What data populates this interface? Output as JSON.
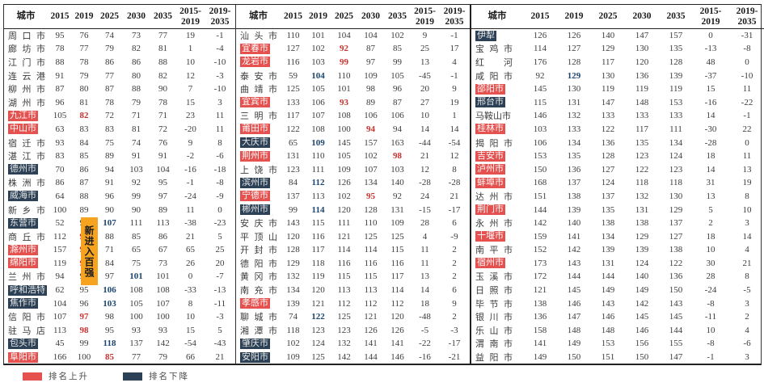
{
  "colors": {
    "rank_up_bg": "#e4514e",
    "rank_down_bg": "#2c4156",
    "first_in_top100_text": "#cb322e",
    "first_out_top100_text": "#1c4670",
    "annotation_bg": "#f6a41f"
  },
  "annotation": {
    "text": "新进入百强"
  },
  "legend": {
    "items": [
      {
        "type": "up",
        "label": "排名上升"
      },
      {
        "type": "down",
        "label": "排名下降"
      }
    ]
  },
  "table": {
    "columns": [
      "城市",
      "2015",
      "2019",
      "2025",
      "2030",
      "2035",
      "2015-\n2019",
      "2019-\n2035"
    ],
    "panels": [
      {
        "rows": [
          [
            "周口市",
            "none",
            [
              95,
              76,
              74,
              73,
              77,
              19,
              -1
            ],
            null
          ],
          [
            "廊坊市",
            "none",
            [
              78,
              77,
              79,
              82,
              81,
              1,
              -4
            ],
            null
          ],
          [
            "江门市",
            "none",
            [
              88,
              78,
              86,
              86,
              88,
              10,
              -10
            ],
            null
          ],
          [
            "连云港",
            "none",
            [
              91,
              79,
              77,
              80,
              82,
              12,
              -3
            ],
            null
          ],
          [
            "柳州市",
            "none",
            [
              87,
              80,
              87,
              88,
              90,
              7,
              -10
            ],
            null
          ],
          [
            "湖州市",
            "none",
            [
              96,
              81,
              78,
              79,
              78,
              15,
              3
            ],
            null
          ],
          [
            "九江市",
            "up",
            [
              105,
              82,
              72,
              71,
              71,
              23,
              11
            ],
            {
              "1": "red"
            }
          ],
          [
            "中山市",
            "up",
            [
              63,
              83,
              83,
              81,
              72,
              -20,
              11
            ],
            null
          ],
          [
            "宿迁市",
            "none",
            [
              93,
              84,
              75,
              74,
              76,
              9,
              8
            ],
            null
          ],
          [
            "湛江市",
            "none",
            [
              83,
              85,
              89,
              91,
              91,
              -2,
              -6
            ],
            null
          ],
          [
            "德州市",
            "down",
            [
              70,
              86,
              94,
              103,
              104,
              -16,
              -18
            ],
            null
          ],
          [
            "株洲市",
            "none",
            [
              86,
              87,
              91,
              92,
              95,
              -1,
              -8
            ],
            null
          ],
          [
            "威海市",
            "down",
            [
              64,
              88,
              96,
              99,
              97,
              -24,
              -9
            ],
            null
          ],
          [
            "新乡市",
            "none",
            [
              100,
              89,
              90,
              90,
              89,
              11,
              0
            ],
            null
          ],
          [
            "东营市",
            "down",
            [
              52,
              90,
              107,
              111,
              113,
              -38,
              -23
            ],
            {
              "2": "blue"
            }
          ],
          [
            "商丘市",
            "none",
            [
              112,
              91,
              88,
              85,
              86,
              21,
              5
            ],
            {
              "1": "red"
            }
          ],
          [
            "滁州市",
            "up",
            [
              157,
              92,
              71,
              65,
              67,
              65,
              25
            ],
            {
              "1": "red"
            }
          ],
          [
            "绵阳市",
            "up",
            [
              119,
              93,
              84,
              75,
              73,
              26,
              20
            ],
            {
              "1": "red"
            }
          ],
          [
            "兰州市",
            "none",
            [
              94,
              94,
              97,
              101,
              101,
              0,
              -7
            ],
            {
              "3": "blue"
            }
          ],
          [
            "呼和浩特",
            "down",
            [
              62,
              95,
              106,
              108,
              108,
              -33,
              -13
            ],
            {
              "2": "blue"
            }
          ],
          [
            "焦作市",
            "down",
            [
              104,
              96,
              103,
              105,
              107,
              8,
              -11
            ],
            {
              "2": "blue"
            }
          ],
          [
            "信阳市",
            "none",
            [
              107,
              97,
              98,
              100,
              100,
              10,
              -3
            ],
            {
              "1": "red"
            }
          ],
          [
            "驻马店",
            "none",
            [
              113,
              98,
              95,
              93,
              93,
              15,
              5
            ],
            {
              "1": "red"
            }
          ],
          [
            "包头市",
            "down",
            [
              45,
              99,
              118,
              137,
              142,
              -54,
              -43
            ],
            {
              "2": "blue"
            }
          ],
          [
            "阜阳市",
            "up",
            [
              166,
              100,
              85,
              77,
              79,
              66,
              21
            ],
            {
              "2": "red"
            }
          ]
        ]
      },
      {
        "rows": [
          [
            "汕头市",
            "none",
            [
              110,
              101,
              104,
              104,
              102,
              9,
              -1
            ],
            null
          ],
          [
            "宜春市",
            "up",
            [
              127,
              102,
              92,
              87,
              85,
              25,
              17
            ],
            {
              "2": "red"
            }
          ],
          [
            "龙岩市",
            "up",
            [
              116,
              103,
              99,
              97,
              99,
              13,
              4
            ],
            {
              "2": "red"
            }
          ],
          [
            "泰安市",
            "none",
            [
              59,
              104,
              110,
              109,
              105,
              -45,
              -1
            ],
            {
              "1": "blue"
            }
          ],
          [
            "曲靖市",
            "none",
            [
              125,
              105,
              101,
              98,
              96,
              20,
              9
            ],
            null
          ],
          [
            "宜宾市",
            "up",
            [
              133,
              106,
              93,
              89,
              87,
              27,
              19
            ],
            {
              "2": "red"
            }
          ],
          [
            "三明市",
            "none",
            [
              117,
              107,
              108,
              106,
              106,
              10,
              1
            ],
            null
          ],
          [
            "莆田市",
            "up",
            [
              122,
              108,
              100,
              94,
              94,
              14,
              14
            ],
            {
              "3": "red"
            }
          ],
          [
            "大庆市",
            "down",
            [
              65,
              109,
              145,
              157,
              163,
              -44,
              -54
            ],
            {
              "1": "blue"
            }
          ],
          [
            "荆州市",
            "up",
            [
              131,
              110,
              105,
              102,
              98,
              21,
              12
            ],
            {
              "4": "red"
            }
          ],
          [
            "上饶市",
            "none",
            [
              123,
              111,
              109,
              107,
              103,
              12,
              8
            ],
            null
          ],
          [
            "滨州市",
            "down",
            [
              84,
              112,
              126,
              134,
              140,
              -28,
              -28
            ],
            {
              "1": "blue"
            }
          ],
          [
            "宁德市",
            "up",
            [
              137,
              113,
              102,
              95,
              92,
              24,
              21
            ],
            {
              "3": "red"
            }
          ],
          [
            "郴州市",
            "down",
            [
              99,
              114,
              120,
              128,
              131,
              -15,
              -17
            ],
            {
              "1": "blue"
            }
          ],
          [
            "安庆市",
            "none",
            [
              143,
              115,
              111,
              110,
              109,
              28,
              6
            ],
            null
          ],
          [
            "平顶山",
            "none",
            [
              120,
              116,
              121,
              125,
              125,
              4,
              -9
            ],
            null
          ],
          [
            "开封市",
            "none",
            [
              128,
              117,
              114,
              114,
              115,
              11,
              2
            ],
            null
          ],
          [
            "德阳市",
            "none",
            [
              129,
              118,
              116,
              116,
              116,
              11,
              2
            ],
            null
          ],
          [
            "黄冈市",
            "none",
            [
              132,
              119,
              115,
              115,
              117,
              13,
              2
            ],
            null
          ],
          [
            "南充市",
            "none",
            [
              134,
              120,
              113,
              113,
              114,
              14,
              6
            ],
            null
          ],
          [
            "孝感市",
            "up",
            [
              139,
              121,
              112,
              112,
              112,
              18,
              9
            ],
            null
          ],
          [
            "聊城市",
            "none",
            [
              74,
              122,
              125,
              121,
              120,
              -48,
              2
            ],
            {
              "1": "blue"
            }
          ],
          [
            "湘潭市",
            "none",
            [
              118,
              123,
              123,
              126,
              126,
              -5,
              -3
            ],
            null
          ],
          [
            "肇庆市",
            "down",
            [
              102,
              124,
              132,
              141,
              141,
              -22,
              -17
            ],
            null
          ],
          [
            "安阳市",
            "down",
            [
              109,
              125,
              142,
              144,
              146,
              -16,
              -21
            ],
            null
          ]
        ]
      },
      {
        "rows": [
          [
            "伊犁",
            "down",
            [
              126,
              126,
              140,
              147,
              157,
              0,
              -31
            ],
            null
          ],
          [
            "宝鸡市",
            "none",
            [
              114,
              127,
              129,
              130,
              135,
              -13,
              -8
            ],
            null
          ],
          [
            "红河",
            "none",
            [
              176,
              128,
              117,
              120,
              128,
              48,
              0
            ],
            null
          ],
          [
            "咸阳市",
            "none",
            [
              92,
              129,
              130,
              136,
              139,
              -37,
              -10
            ],
            {
              "1": "blue"
            }
          ],
          [
            "邵阳市",
            "up",
            [
              145,
              130,
              119,
              119,
              119,
              15,
              11
            ],
            null
          ],
          [
            "邢台市",
            "down",
            [
              115,
              131,
              147,
              148,
              153,
              -16,
              -22
            ],
            null
          ],
          [
            "马鞍山市",
            "none",
            [
              146,
              132,
              133,
              133,
              133,
              14,
              -1
            ],
            null
          ],
          [
            "桂林市",
            "up",
            [
              103,
              133,
              122,
              117,
              111,
              -30,
              22
            ],
            null
          ],
          [
            "揭阳市",
            "none",
            [
              106,
              134,
              136,
              135,
              134,
              -28,
              0
            ],
            null
          ],
          [
            "吉安市",
            "up",
            [
              153,
              135,
              128,
              123,
              124,
              18,
              11
            ],
            null
          ],
          [
            "泸州市",
            "up",
            [
              150,
              136,
              127,
              122,
              123,
              14,
              13
            ],
            null
          ],
          [
            "蚌埠市",
            "up",
            [
              168,
              137,
              124,
              118,
              118,
              31,
              19
            ],
            null
          ],
          [
            "达州市",
            "none",
            [
              151,
              138,
              137,
              132,
              130,
              13,
              8
            ],
            null
          ],
          [
            "荆门市",
            "up",
            [
              144,
              139,
              135,
              131,
              129,
              5,
              10
            ],
            null
          ],
          [
            "永州市",
            "none",
            [
              142,
              140,
              138,
              138,
              137,
              2,
              3
            ],
            null
          ],
          [
            "十堰市",
            "up",
            [
              159,
              141,
              134,
              129,
              127,
              18,
              14
            ],
            null
          ],
          [
            "南平市",
            "none",
            [
              152,
              142,
              139,
              139,
              138,
              10,
              4
            ],
            null
          ],
          [
            "宿州市",
            "up",
            [
              173,
              143,
              131,
              124,
              122,
              30,
              21
            ],
            null
          ],
          [
            "玉溪市",
            "none",
            [
              172,
              144,
              144,
              140,
              136,
              28,
              8
            ],
            null
          ],
          [
            "日照市",
            "none",
            [
              121,
              145,
              149,
              149,
              150,
              -24,
              -5
            ],
            null
          ],
          [
            "毕节市",
            "none",
            [
              138,
              146,
              143,
              142,
              143,
              -8,
              3
            ],
            null
          ],
          [
            "银川市",
            "none",
            [
              136,
              147,
              146,
              145,
              145,
              -11,
              2
            ],
            null
          ],
          [
            "乐山市",
            "none",
            [
              158,
              148,
              148,
              146,
              144,
              10,
              4
            ],
            null
          ],
          [
            "渭南市",
            "none",
            [
              141,
              149,
              153,
              156,
              155,
              -8,
              -6
            ],
            null
          ],
          [
            "益阳市",
            "none",
            [
              149,
              150,
              151,
              150,
              147,
              -1,
              3
            ],
            null
          ]
        ]
      }
    ]
  }
}
